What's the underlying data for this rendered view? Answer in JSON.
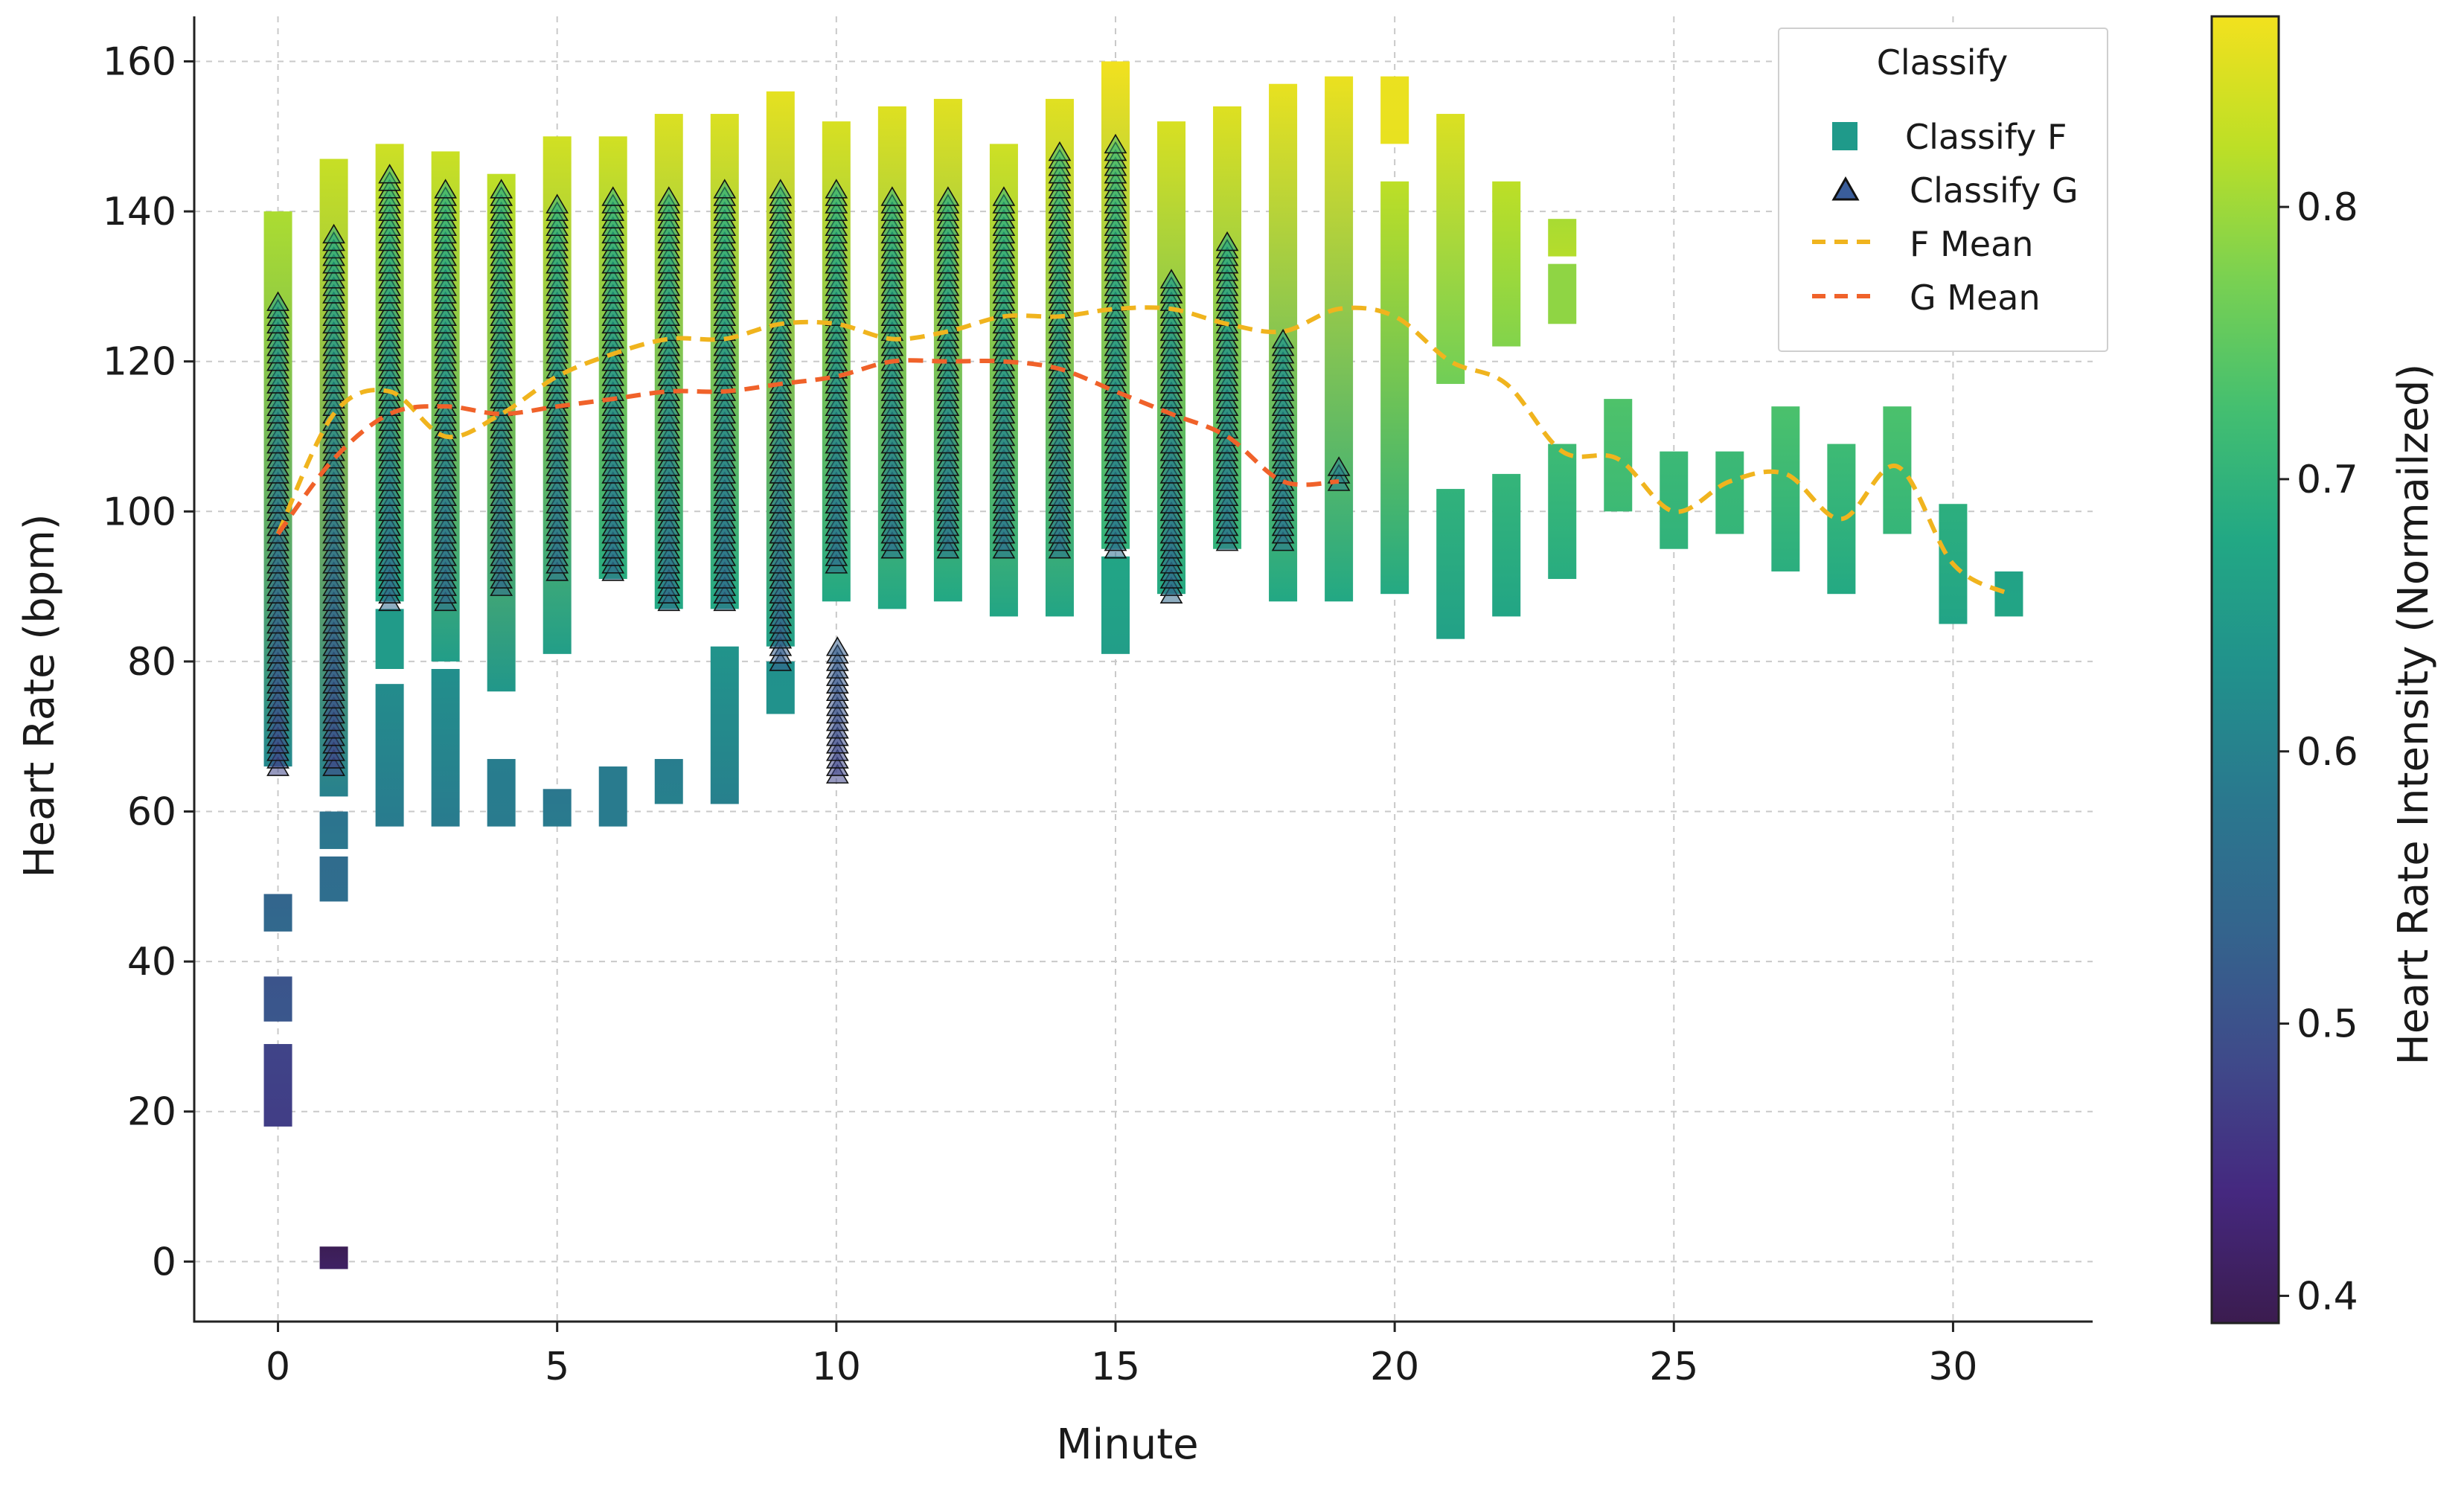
{
  "chart_data": {
    "type": "scatter",
    "title": "",
    "xlabel": "Minute",
    "ylabel": "Heart Rate (bpm)",
    "xlim": [
      -1.5,
      32.5
    ],
    "ylim": [
      -8,
      166
    ],
    "xticks": [
      0,
      5,
      10,
      15,
      20,
      25,
      30
    ],
    "yticks": [
      0,
      20,
      40,
      60,
      80,
      100,
      120,
      140,
      160
    ],
    "grid": true,
    "legend": {
      "title": "Classify",
      "position": "top-right",
      "entries": [
        "Classify F",
        "Classify G",
        "F Mean",
        "G Mean"
      ]
    },
    "colorbar": {
      "label": "Heart Rate Intensity (Normailzed)",
      "range": [
        0.39,
        0.87
      ],
      "ticks": [
        0.4,
        0.5,
        0.6,
        0.7,
        0.8
      ],
      "colormap": [
        "#3b1c4f",
        "#45287f",
        "#3f4a8a",
        "#34648d",
        "#2a788e",
        "#21918c",
        "#22a884",
        "#44bf70",
        "#7ad151",
        "#bddf26",
        "#f2e11e"
      ]
    },
    "series": [
      {
        "name": "Classify F",
        "marker": "square",
        "columns": [
          {
            "x": 0,
            "segments": [
              [
                66,
                140
              ],
              [
                44,
                49
              ],
              [
                32,
                38
              ],
              [
                18,
                29
              ]
            ]
          },
          {
            "x": 1,
            "segments": [
              [
                62,
                147
              ],
              [
                55,
                60
              ],
              [
                48,
                54
              ],
              [
                -1,
                2
              ]
            ]
          },
          {
            "x": 2,
            "segments": [
              [
                58,
                77
              ],
              [
                79,
                87
              ],
              [
                88,
                149
              ]
            ]
          },
          {
            "x": 3,
            "segments": [
              [
                58,
                79
              ],
              [
                80,
                148
              ]
            ]
          },
          {
            "x": 4,
            "segments": [
              [
                58,
                67
              ],
              [
                76,
                145
              ]
            ]
          },
          {
            "x": 5,
            "segments": [
              [
                58,
                63
              ],
              [
                81,
                150
              ]
            ]
          },
          {
            "x": 6,
            "segments": [
              [
                58,
                66
              ],
              [
                91,
                150
              ]
            ]
          },
          {
            "x": 7,
            "segments": [
              [
                61,
                67
              ],
              [
                87,
                153
              ]
            ]
          },
          {
            "x": 8,
            "segments": [
              [
                61,
                82
              ],
              [
                87,
                153
              ]
            ]
          },
          {
            "x": 9,
            "segments": [
              [
                73,
                80
              ],
              [
                82,
                156
              ]
            ]
          },
          {
            "x": 10,
            "segments": [
              [
                88,
                152
              ]
            ]
          },
          {
            "x": 11,
            "segments": [
              [
                87,
                154
              ]
            ]
          },
          {
            "x": 12,
            "segments": [
              [
                88,
                155
              ]
            ]
          },
          {
            "x": 13,
            "segments": [
              [
                86,
                149
              ]
            ]
          },
          {
            "x": 14,
            "segments": [
              [
                86,
                155
              ]
            ]
          },
          {
            "x": 15,
            "segments": [
              [
                81,
                94
              ],
              [
                95,
                160
              ]
            ]
          },
          {
            "x": 16,
            "segments": [
              [
                89,
                152
              ]
            ]
          },
          {
            "x": 17,
            "segments": [
              [
                95,
                154
              ]
            ]
          },
          {
            "x": 18,
            "segments": [
              [
                88,
                157
              ]
            ]
          },
          {
            "x": 19,
            "segments": [
              [
                88,
                158
              ]
            ]
          },
          {
            "x": 20,
            "segments": [
              [
                89,
                144
              ],
              [
                149,
                158
              ]
            ]
          },
          {
            "x": 21,
            "segments": [
              [
                83,
                103
              ],
              [
                117,
                153
              ]
            ]
          },
          {
            "x": 22,
            "segments": [
              [
                86,
                105
              ],
              [
                122,
                144
              ]
            ]
          },
          {
            "x": 23,
            "segments": [
              [
                91,
                109
              ],
              [
                125,
                133
              ],
              [
                134,
                139
              ]
            ]
          },
          {
            "x": 24,
            "segments": [
              [
                100,
                115
              ]
            ]
          },
          {
            "x": 25,
            "segments": [
              [
                95,
                108
              ]
            ]
          },
          {
            "x": 26,
            "segments": [
              [
                97,
                108
              ]
            ]
          },
          {
            "x": 27,
            "segments": [
              [
                92,
                114
              ]
            ]
          },
          {
            "x": 28,
            "segments": [
              [
                89,
                109
              ]
            ]
          },
          {
            "x": 29,
            "segments": [
              [
                97,
                114
              ]
            ]
          },
          {
            "x": 30,
            "segments": [
              [
                85,
                101
              ]
            ]
          },
          {
            "x": 31,
            "segments": [
              [
                86,
                92
              ]
            ]
          }
        ]
      },
      {
        "name": "Classify G",
        "marker": "triangle",
        "columns": [
          {
            "x": 0,
            "min": 66,
            "max": 128
          },
          {
            "x": 1,
            "min": 66,
            "max": 137
          },
          {
            "x": 2,
            "min": 88,
            "max": 145
          },
          {
            "x": 3,
            "min": 88,
            "max": 143
          },
          {
            "x": 4,
            "min": 90,
            "max": 143
          },
          {
            "x": 5,
            "min": 92,
            "max": 141
          },
          {
            "x": 6,
            "min": 92,
            "max": 142
          },
          {
            "x": 7,
            "min": 88,
            "max": 142
          },
          {
            "x": 8,
            "min": 88,
            "max": 143
          },
          {
            "x": 9,
            "min": 80,
            "max": 143
          },
          {
            "x": 10,
            "min": 93,
            "max": 143
          },
          {
            "x": 10.02,
            "min": 65,
            "max": 82
          },
          {
            "x": 11,
            "min": 95,
            "max": 142
          },
          {
            "x": 12,
            "min": 95,
            "max": 142
          },
          {
            "x": 13,
            "min": 95,
            "max": 142
          },
          {
            "x": 14,
            "min": 95,
            "max": 148
          },
          {
            "x": 15,
            "min": 95,
            "max": 149
          },
          {
            "x": 16,
            "min": 89,
            "max": 131
          },
          {
            "x": 17,
            "min": 96,
            "max": 136
          },
          {
            "x": 18,
            "min": 96,
            "max": 123
          },
          {
            "x": 19,
            "min": 104,
            "max": 106
          }
        ]
      },
      {
        "name": "F Mean",
        "type": "line",
        "style": "dashed",
        "color": "#f0b41e",
        "x": [
          0,
          1,
          2,
          3,
          4,
          5,
          6,
          7,
          8,
          9,
          10,
          11,
          12,
          13,
          14,
          15,
          16,
          17,
          18,
          19,
          20,
          21,
          22,
          23,
          24,
          25,
          26,
          27,
          28,
          29,
          30,
          31
        ],
        "values": [
          97,
          113,
          116,
          110,
          113,
          118,
          121,
          123,
          123,
          125,
          125,
          123,
          124,
          126,
          126,
          127,
          127,
          125,
          124,
          127,
          126,
          120,
          117,
          108,
          107,
          100,
          104,
          105,
          99,
          106,
          93,
          89
        ]
      },
      {
        "name": "G Mean",
        "type": "line",
        "style": "dashed",
        "color": "#f0622a",
        "x": [
          0,
          1,
          2,
          3,
          4,
          5,
          6,
          7,
          8,
          9,
          10,
          11,
          12,
          13,
          14,
          15,
          16,
          17,
          18,
          19
        ],
        "values": [
          97,
          107,
          113,
          114,
          113,
          114,
          115,
          116,
          116,
          117,
          118,
          120,
          120,
          120,
          119,
          116,
          113,
          110,
          104,
          104
        ]
      }
    ]
  }
}
